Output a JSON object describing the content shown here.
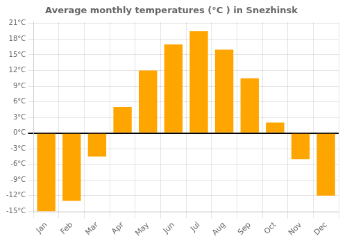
{
  "chart_data": {
    "type": "bar",
    "title": "Average monthly temperatures (°C ) in Snezhinsk",
    "categories": [
      "Jan",
      "Feb",
      "Mar",
      "Apr",
      "May",
      "Jun",
      "Jul",
      "Aug",
      "Sep",
      "Oct",
      "Nov",
      "Dec"
    ],
    "values": [
      -15,
      -13,
      -4.5,
      5,
      12,
      17,
      19.5,
      16,
      10.5,
      2,
      -5,
      -12
    ],
    "color": "#FFA500",
    "ylim": [
      -15.3,
      21.3
    ],
    "yticks": [
      {
        "value": -15,
        "label": "-15°C"
      },
      {
        "value": -12,
        "label": "-12°C"
      },
      {
        "value": -9,
        "label": "-9°C"
      },
      {
        "value": -6,
        "label": "-6°C"
      },
      {
        "value": -3,
        "label": "-3°C"
      },
      {
        "value": 0,
        "label": "0°C"
      },
      {
        "value": 3,
        "label": "3°C"
      },
      {
        "value": 6,
        "label": "6°C"
      },
      {
        "value": 9,
        "label": "9°C"
      },
      {
        "value": 12,
        "label": "12°C"
      },
      {
        "value": 15,
        "label": "15°C"
      },
      {
        "value": 18,
        "label": "18°C"
      },
      {
        "value": 21,
        "label": "21°C"
      }
    ],
    "grid": true
  }
}
